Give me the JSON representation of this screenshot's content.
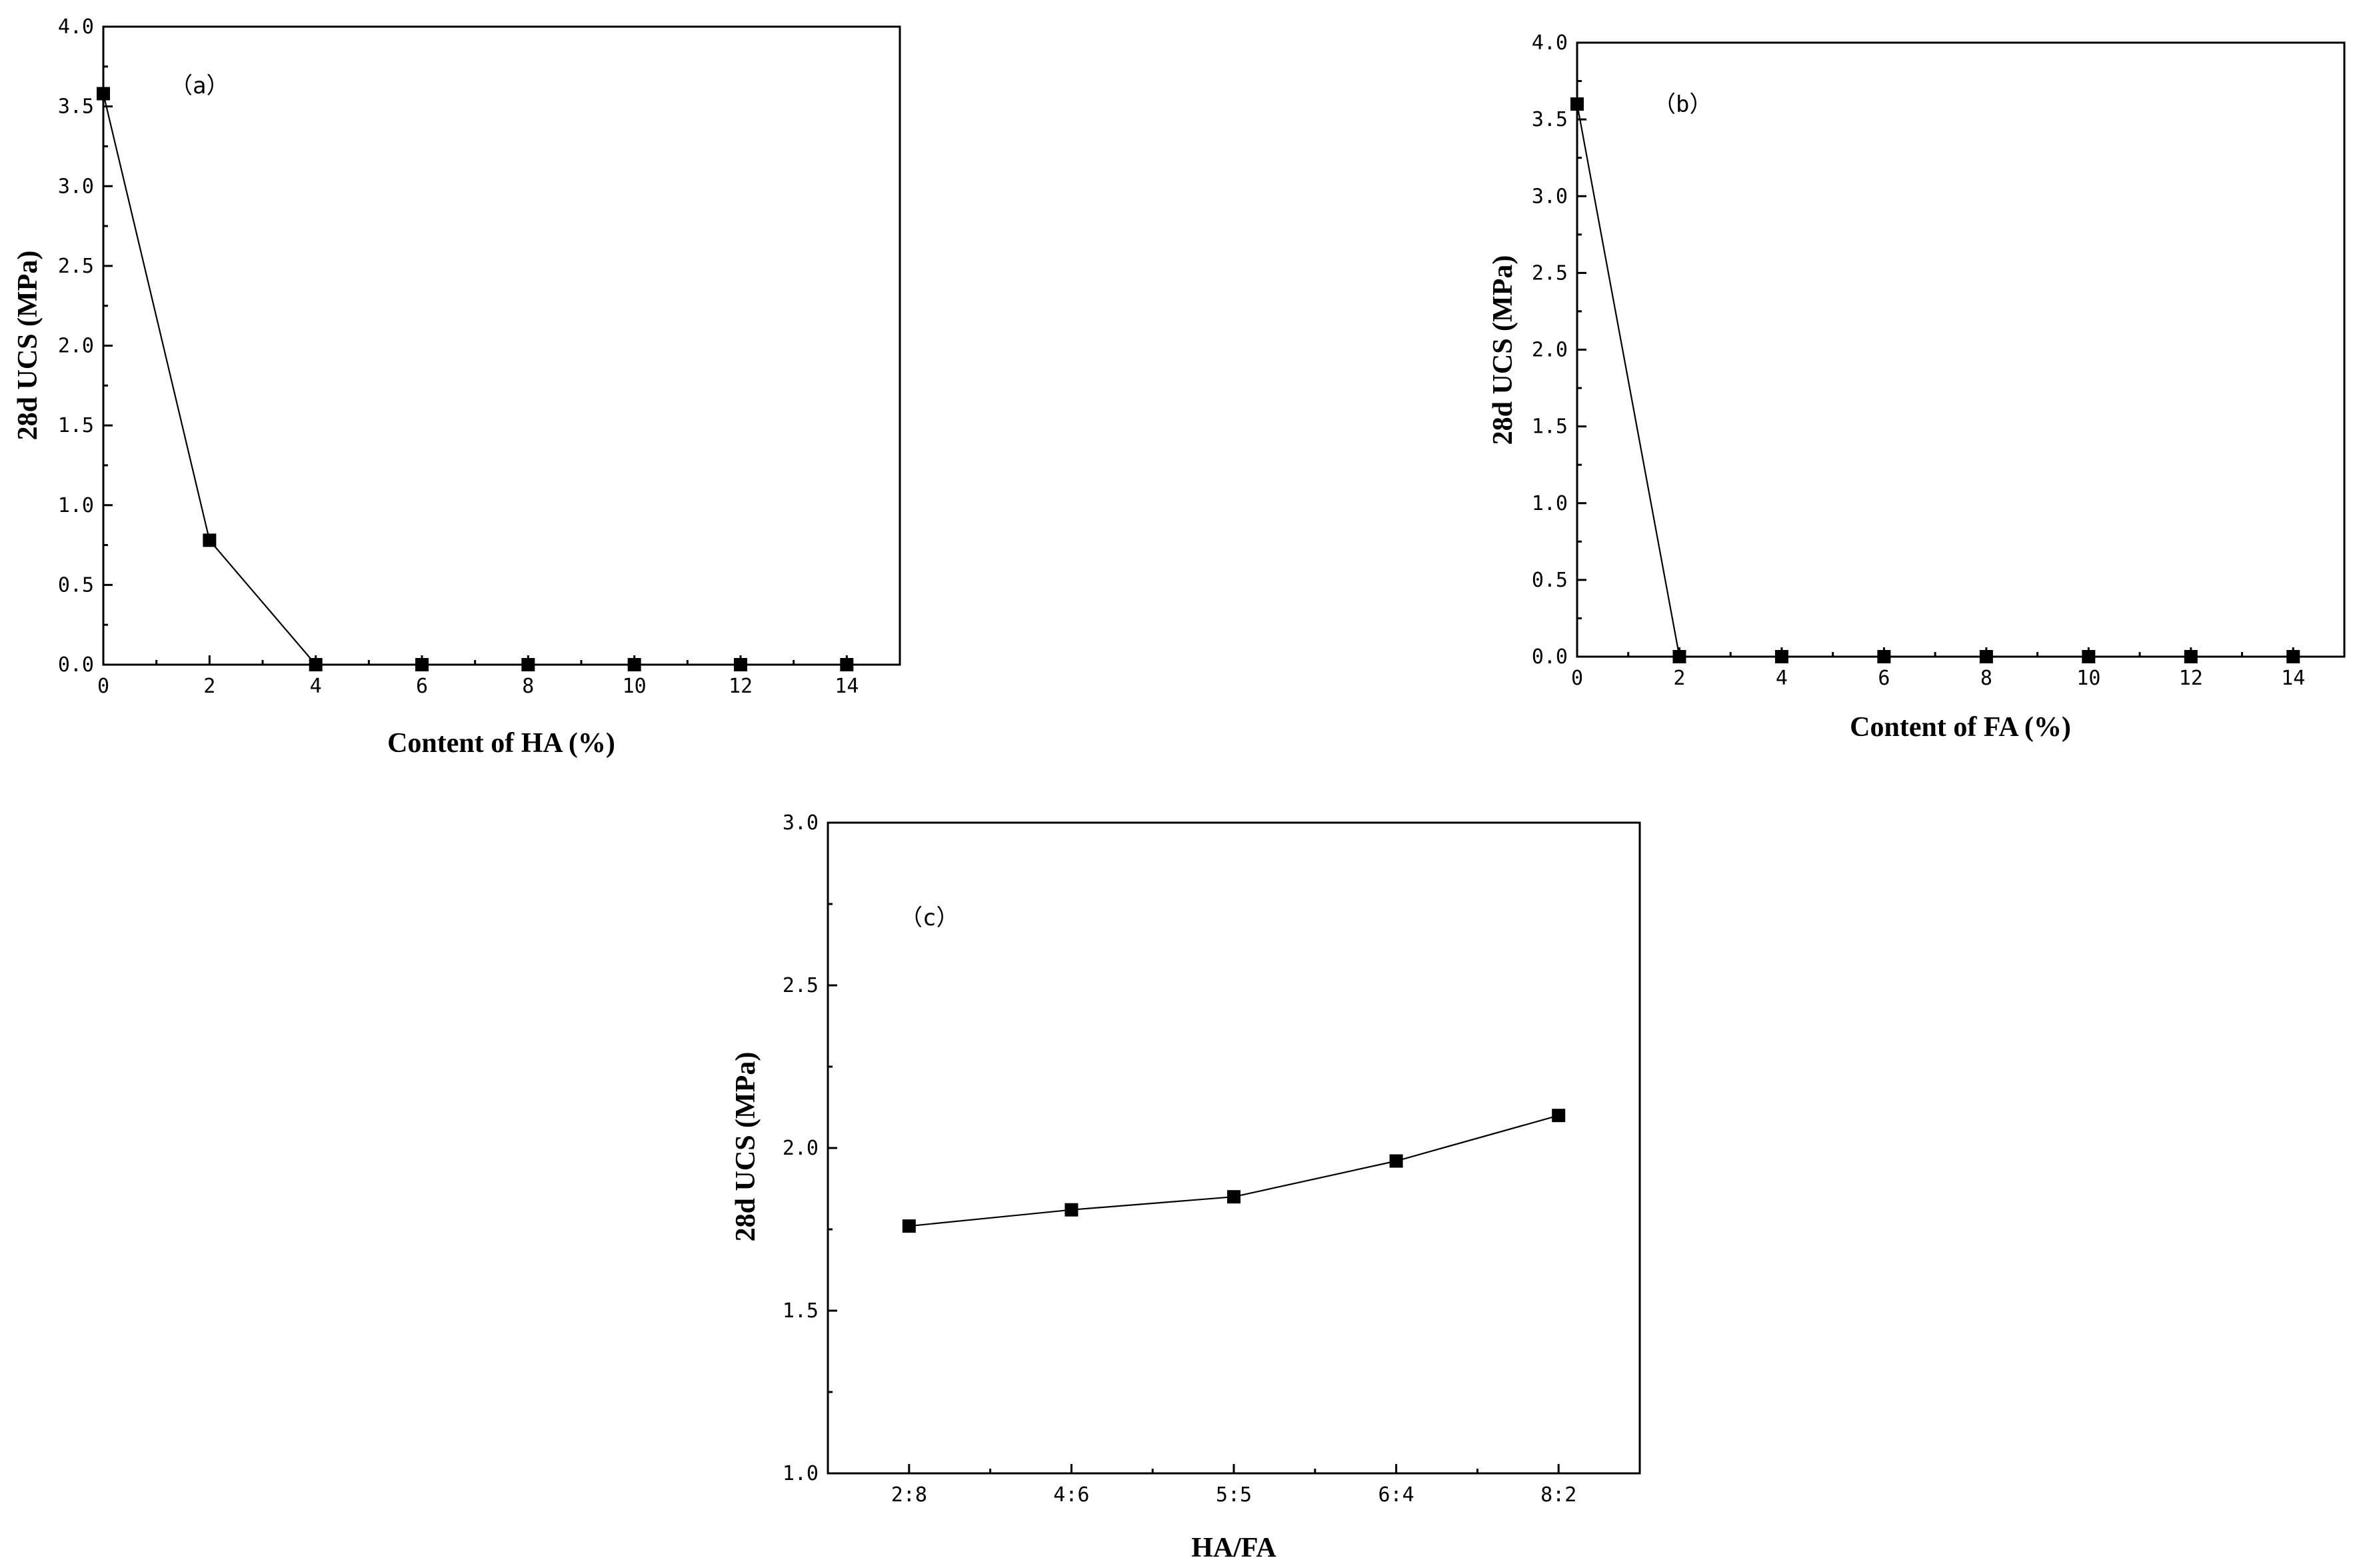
{
  "chart_data": [
    {
      "id": "a",
      "type": "line",
      "panel_label": "（a）",
      "xlabel": "Content of HA (%)",
      "ylabel": "28d UCS (MPa)",
      "xlim": [
        0,
        15
      ],
      "ylim": [
        0,
        4.0
      ],
      "x_ticks": [
        "0",
        "2",
        "4",
        "6",
        "8",
        "10",
        "12",
        "14"
      ],
      "x_tick_values": [
        0,
        2,
        4,
        6,
        8,
        10,
        12,
        14
      ],
      "y_ticks": [
        "0.0",
        "0.5",
        "1.0",
        "1.5",
        "2.0",
        "2.5",
        "3.0",
        "3.5",
        "4.0"
      ],
      "y_tick_values": [
        0,
        0.5,
        1.0,
        1.5,
        2.0,
        2.5,
        3.0,
        3.5,
        4.0
      ],
      "x": [
        0,
        2,
        4,
        6,
        8,
        10,
        12,
        14
      ],
      "y": [
        3.58,
        0.78,
        0.0,
        0.0,
        0.0,
        0.0,
        0.0,
        0.0
      ],
      "grid": false
    },
    {
      "id": "b",
      "type": "line",
      "panel_label": "（b）",
      "xlabel": "Content of FA (%)",
      "ylabel": "28d UCS (MPa)",
      "xlim": [
        0,
        15
      ],
      "ylim": [
        0,
        4.0
      ],
      "x_ticks": [
        "0",
        "2",
        "4",
        "6",
        "8",
        "10",
        "12",
        "14"
      ],
      "x_tick_values": [
        0,
        2,
        4,
        6,
        8,
        10,
        12,
        14
      ],
      "y_ticks": [
        "0.0",
        "0.5",
        "1.0",
        "1.5",
        "2.0",
        "2.5",
        "3.0",
        "3.5",
        "4.0"
      ],
      "y_tick_values": [
        0,
        0.5,
        1.0,
        1.5,
        2.0,
        2.5,
        3.0,
        3.5,
        4.0
      ],
      "x": [
        0,
        2,
        4,
        6,
        8,
        10,
        12,
        14
      ],
      "y": [
        3.6,
        0.0,
        0.0,
        0.0,
        0.0,
        0.0,
        0.0,
        0.0
      ],
      "grid": false
    },
    {
      "id": "c",
      "type": "line",
      "panel_label": "（c）",
      "xlabel": "HA/FA",
      "ylabel": "28d UCS (MPa)",
      "xlim": [
        0.5,
        5.5
      ],
      "ylim": [
        1.0,
        3.0
      ],
      "x_ticks": [
        "2:8",
        "4:6",
        "5:5",
        "6:4",
        "8:2"
      ],
      "x_tick_values": [
        1,
        2,
        3,
        4,
        5
      ],
      "y_ticks": [
        "1.0",
        "1.5",
        "2.0",
        "2.5",
        "3.0"
      ],
      "y_tick_values": [
        1.0,
        1.5,
        2.0,
        2.5,
        3.0
      ],
      "x": [
        1,
        2,
        3,
        4,
        5
      ],
      "categories": [
        "2:8",
        "4:6",
        "5:5",
        "6:4",
        "8:2"
      ],
      "y": [
        1.76,
        1.81,
        1.85,
        1.96,
        2.1
      ],
      "grid": false
    }
  ]
}
